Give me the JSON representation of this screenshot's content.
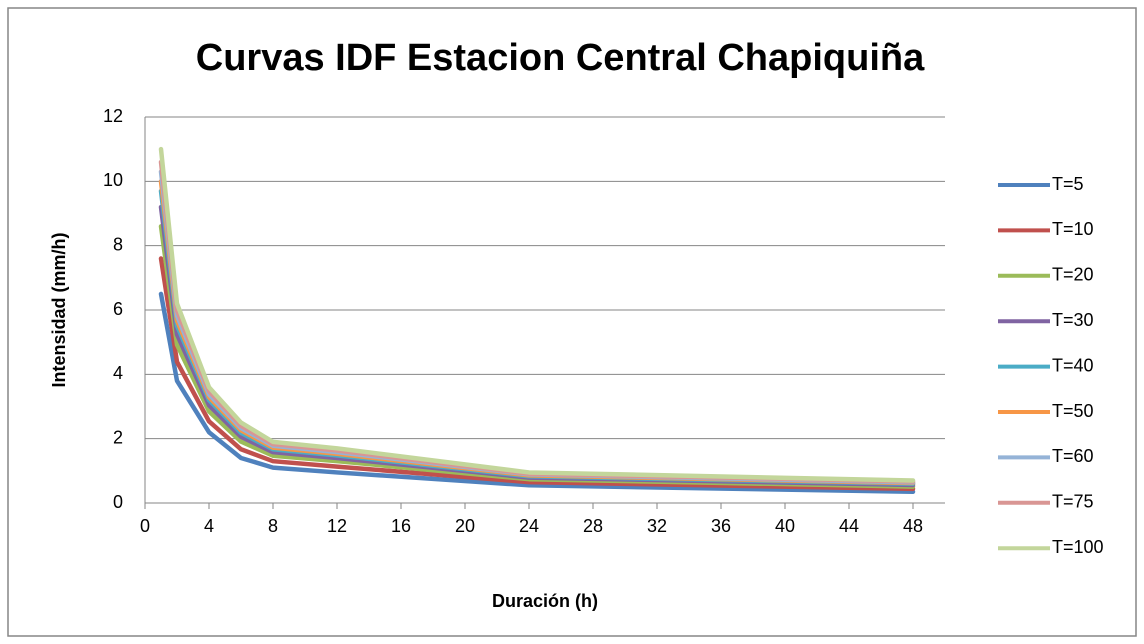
{
  "chart_data": {
    "type": "line",
    "title": "Curvas IDF Estacion Central Chapiquiña",
    "x_label": "Duración (h)",
    "y_label": "Intensidad (mm/h)",
    "x": [
      1,
      2,
      4,
      6,
      8,
      12,
      24,
      48
    ],
    "series": [
      {
        "name": "T=5",
        "color": "#4f81bd",
        "values": [
          6.5,
          3.8,
          2.2,
          1.4,
          1.1,
          0.95,
          0.55,
          0.35
        ]
      },
      {
        "name": "T=10",
        "color": "#c0504d",
        "values": [
          7.6,
          4.39,
          2.54,
          1.67,
          1.3,
          1.13,
          0.65,
          0.44
        ]
      },
      {
        "name": "T=20",
        "color": "#9bbb59",
        "values": [
          8.6,
          4.92,
          2.85,
          1.91,
          1.47,
          1.3,
          0.74,
          0.51
        ]
      },
      {
        "name": "T=30",
        "color": "#8064a2",
        "values": [
          9.2,
          5.24,
          3.04,
          2.06,
          1.58,
          1.4,
          0.79,
          0.56
        ]
      },
      {
        "name": "T=40",
        "color": "#4bacc6",
        "values": [
          9.7,
          5.51,
          3.2,
          2.18,
          1.67,
          1.48,
          0.83,
          0.6
        ]
      },
      {
        "name": "T=50",
        "color": "#f79646",
        "values": [
          10.0,
          5.67,
          3.29,
          2.26,
          1.72,
          1.53,
          0.86,
          0.62
        ]
      },
      {
        "name": "T=60",
        "color": "#95b3d7",
        "values": [
          10.3,
          5.83,
          3.38,
          2.33,
          1.78,
          1.58,
          0.89,
          0.64
        ]
      },
      {
        "name": "T=75",
        "color": "#d99694",
        "values": [
          10.6,
          5.99,
          3.48,
          2.4,
          1.83,
          1.63,
          0.91,
          0.67
        ]
      },
      {
        "name": "T=100",
        "color": "#c3d69b",
        "values": [
          11.0,
          6.2,
          3.6,
          2.5,
          1.9,
          1.7,
          0.95,
          0.7
        ]
      }
    ],
    "xlim": [
      0,
      50
    ],
    "xticks": [
      0,
      4,
      8,
      12,
      16,
      20,
      24,
      28,
      32,
      36,
      40,
      44,
      48
    ],
    "ylim": [
      0,
      12
    ],
    "yticks": [
      0,
      2,
      4,
      6,
      8,
      10,
      12
    ],
    "grid": true,
    "legend": "right"
  }
}
